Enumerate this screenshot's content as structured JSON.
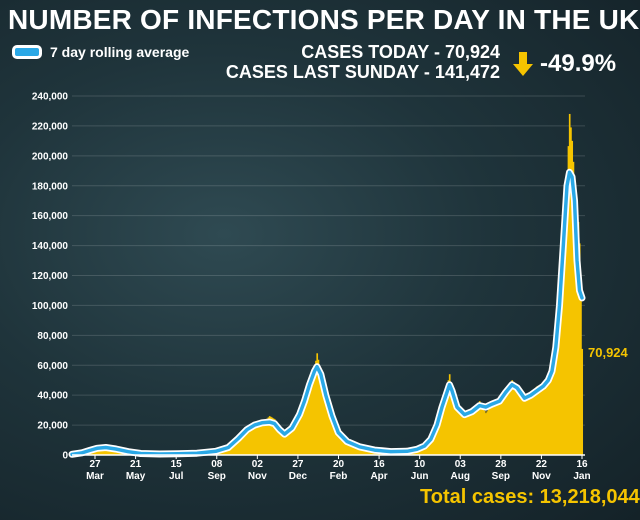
{
  "header": {
    "title": "NUMBER OF INFECTIONS PER DAY IN THE UK",
    "legend_label": "7 day rolling average",
    "cases_today": "CASES TODAY - 70,924",
    "cases_last_sunday": "CASES LAST SUNDAY - 141,472",
    "change": "-49.9%"
  },
  "footer": {
    "total_cases": "Total cases: 13,218,044"
  },
  "colors": {
    "bars": "#f5c400",
    "average_line": "#2aa8e6",
    "average_outline": "#ffffff",
    "change_arrow": "#f5c400"
  },
  "chart_data": {
    "type": "bar",
    "title": "NUMBER OF INFECTIONS PER DAY IN THE UK",
    "ylim": [
      0,
      240000
    ],
    "y_ticks": [
      "0",
      "20,000",
      "40,000",
      "60,000",
      "80,000",
      "100,000",
      "120,000",
      "140,000",
      "160,000",
      "180,000",
      "200,000",
      "220,000",
      "240,000"
    ],
    "x_ticks": [
      {
        "day": 27,
        "month": "Mar"
      },
      {
        "day": 21,
        "month": "May"
      },
      {
        "day": 15,
        "month": "Jul"
      },
      {
        "day": "08",
        "month": "Sep"
      },
      {
        "day": "02",
        "month": "Nov"
      },
      {
        "day": 27,
        "month": "Dec"
      },
      {
        "day": 20,
        "month": "Feb"
      },
      {
        "day": 16,
        "month": "Apr"
      },
      {
        "day": 10,
        "month": "Jun"
      },
      {
        "day": "03",
        "month": "Aug"
      },
      {
        "day": 28,
        "month": "Sep"
      },
      {
        "day": 22,
        "month": "Nov"
      },
      {
        "day": 16,
        "month": "Jan"
      }
    ],
    "last_value_label": "70,924",
    "series": [
      {
        "kind": "daily",
        "points": [
          [
            0,
            0
          ],
          [
            8,
            1000
          ],
          [
            14,
            3000
          ],
          [
            20,
            5000
          ],
          [
            27,
            5500
          ],
          [
            35,
            4500
          ],
          [
            45,
            2500
          ],
          [
            55,
            1200
          ],
          [
            70,
            700
          ],
          [
            85,
            800
          ],
          [
            100,
            1200
          ],
          [
            115,
            2500
          ],
          [
            125,
            4500
          ],
          [
            133,
            12000
          ],
          [
            140,
            16000
          ],
          [
            146,
            22000
          ],
          [
            152,
            21000
          ],
          [
            158,
            26000
          ],
          [
            162,
            24000
          ],
          [
            166,
            18000
          ],
          [
            170,
            14000
          ],
          [
            176,
            18000
          ],
          [
            182,
            28000
          ],
          [
            186,
            36000
          ],
          [
            190,
            48000
          ],
          [
            194,
            58000
          ],
          [
            196,
            68000
          ],
          [
            199,
            55000
          ],
          [
            203,
            38000
          ],
          [
            208,
            24000
          ],
          [
            213,
            14000
          ],
          [
            220,
            9000
          ],
          [
            230,
            6000
          ],
          [
            242,
            3500
          ],
          [
            255,
            2500
          ],
          [
            268,
            2500
          ],
          [
            276,
            4000
          ],
          [
            282,
            6500
          ],
          [
            287,
            11000
          ],
          [
            292,
            22000
          ],
          [
            296,
            34000
          ],
          [
            300,
            46000
          ],
          [
            302,
            54000
          ],
          [
            304,
            42000
          ],
          [
            308,
            30000
          ],
          [
            314,
            27000
          ],
          [
            320,
            30000
          ],
          [
            326,
            36000
          ],
          [
            331,
            28000
          ],
          [
            336,
            34000
          ],
          [
            342,
            36000
          ],
          [
            347,
            42000
          ],
          [
            352,
            50000
          ],
          [
            356,
            46000
          ],
          [
            362,
            38000
          ],
          [
            367,
            42000
          ],
          [
            372,
            46000
          ],
          [
            377,
            48000
          ],
          [
            381,
            52000
          ],
          [
            384,
            58000
          ],
          [
            387,
            72000
          ],
          [
            390,
            100000
          ],
          [
            393,
            140000
          ],
          [
            396,
            185000
          ],
          [
            398,
            228000
          ],
          [
            400,
            210000
          ],
          [
            402,
            182000
          ],
          [
            404,
            170000
          ],
          [
            406,
            141472
          ],
          [
            408,
            70924
          ]
        ]
      },
      {
        "name": "7 day rolling average",
        "points": [
          [
            0,
            500
          ],
          [
            8,
            1500
          ],
          [
            14,
            3000
          ],
          [
            20,
            4500
          ],
          [
            27,
            5000
          ],
          [
            35,
            4000
          ],
          [
            45,
            2200
          ],
          [
            55,
            1000
          ],
          [
            70,
            700
          ],
          [
            85,
            800
          ],
          [
            100,
            1200
          ],
          [
            115,
            2500
          ],
          [
            125,
            5000
          ],
          [
            133,
            11000
          ],
          [
            140,
            17000
          ],
          [
            146,
            20000
          ],
          [
            152,
            21500
          ],
          [
            158,
            22000
          ],
          [
            162,
            21000
          ],
          [
            166,
            17000
          ],
          [
            170,
            14000
          ],
          [
            176,
            18000
          ],
          [
            182,
            27000
          ],
          [
            186,
            36000
          ],
          [
            190,
            47000
          ],
          [
            194,
            56000
          ],
          [
            196,
            59000
          ],
          [
            199,
            54000
          ],
          [
            203,
            40000
          ],
          [
            208,
            26000
          ],
          [
            213,
            15000
          ],
          [
            220,
            9000
          ],
          [
            230,
            5500
          ],
          [
            242,
            3300
          ],
          [
            255,
            2300
          ],
          [
            268,
            2500
          ],
          [
            276,
            3800
          ],
          [
            282,
            6000
          ],
          [
            287,
            10500
          ],
          [
            292,
            20000
          ],
          [
            296,
            32000
          ],
          [
            300,
            42000
          ],
          [
            302,
            47000
          ],
          [
            304,
            43000
          ],
          [
            308,
            32000
          ],
          [
            314,
            27000
          ],
          [
            320,
            29000
          ],
          [
            326,
            33000
          ],
          [
            331,
            32000
          ],
          [
            336,
            34000
          ],
          [
            342,
            36000
          ],
          [
            347,
            42000
          ],
          [
            352,
            47000
          ],
          [
            356,
            45000
          ],
          [
            362,
            38000
          ],
          [
            367,
            40000
          ],
          [
            372,
            43000
          ],
          [
            377,
            46000
          ],
          [
            381,
            50000
          ],
          [
            384,
            56000
          ],
          [
            387,
            72000
          ],
          [
            390,
            100000
          ],
          [
            393,
            140000
          ],
          [
            396,
            180000
          ],
          [
            398,
            189000
          ],
          [
            400,
            186000
          ],
          [
            402,
            170000
          ],
          [
            404,
            130000
          ],
          [
            406,
            110000
          ],
          [
            408,
            105000
          ]
        ]
      }
    ]
  }
}
